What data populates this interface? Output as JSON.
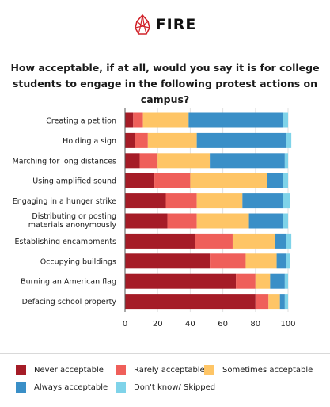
{
  "brand": {
    "name": "FIRE"
  },
  "title": "How acceptable, if at all, would you say it is for college students to engage in the following protest actions on campus?",
  "chart_data": {
    "type": "bar",
    "orientation": "horizontal",
    "stacked": true,
    "categories": [
      "Creating a petition",
      "Holding a sign",
      "Marching for long distances",
      "Using amplified sound",
      "Engaging in a hunger strike",
      "Distributing or posting materials anonymously",
      "Establishing encampments",
      "Occupying buildings",
      "Burning an American flag",
      "Defacing school property"
    ],
    "series": [
      {
        "name": "Never acceptable",
        "color": "#a51c27",
        "values": [
          5,
          6,
          9,
          18,
          25,
          26,
          43,
          52,
          68,
          80
        ]
      },
      {
        "name": "Rarely acceptable",
        "color": "#ef5f5a",
        "values": [
          6,
          8,
          11,
          22,
          19,
          18,
          23,
          22,
          12,
          8
        ]
      },
      {
        "name": "Sometimes acceptable",
        "color": "#fec566",
        "values": [
          28,
          30,
          32,
          47,
          28,
          32,
          26,
          19,
          9,
          7
        ]
      },
      {
        "name": "Always acceptable",
        "color": "#3a8fc7",
        "values": [
          58,
          55,
          46,
          10,
          25,
          21,
          7,
          6,
          9,
          3
        ]
      },
      {
        "name": "Don't know/ Skipped",
        "color": "#7fd3e9",
        "values": [
          3,
          3,
          2,
          3,
          4,
          3,
          3,
          2,
          2,
          2
        ]
      }
    ],
    "xlim": [
      0,
      100
    ],
    "xticks": [
      0,
      20,
      40,
      60,
      80,
      100
    ],
    "grid": true,
    "legend_position": "bottom"
  }
}
